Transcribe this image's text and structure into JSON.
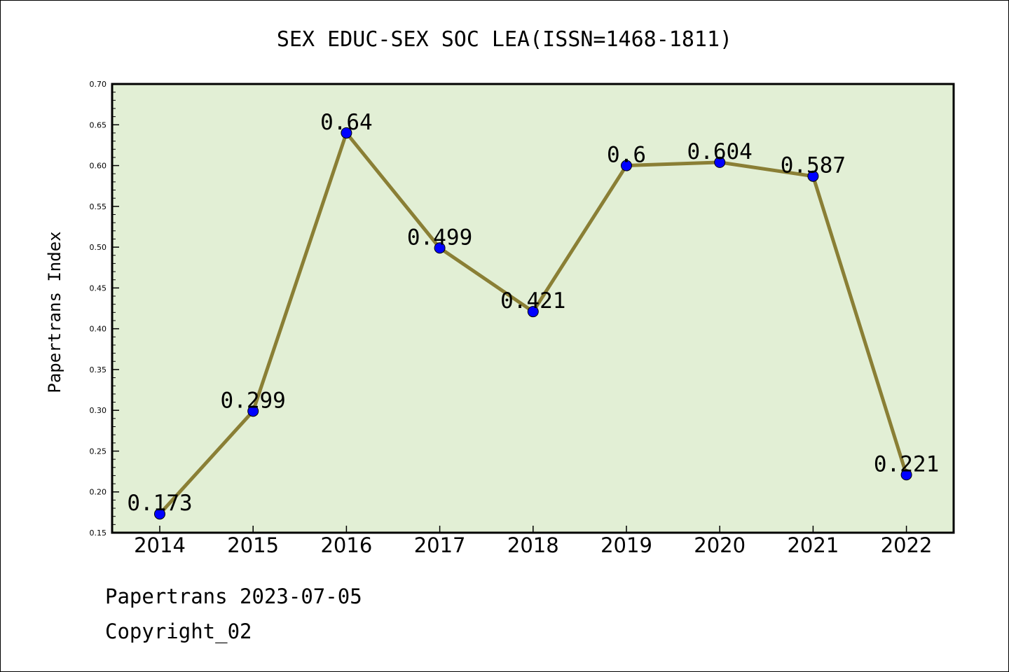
{
  "chart_data": {
    "type": "line",
    "title": "SEX EDUC-SEX SOC LEA(ISSN=1468-1811)",
    "xlabel": "",
    "ylabel": "Papertrans Index",
    "categories": [
      "2014",
      "2015",
      "2016",
      "2017",
      "2018",
      "2019",
      "2020",
      "2021",
      "2022"
    ],
    "values": [
      0.173,
      0.299,
      0.64,
      0.499,
      0.421,
      0.6,
      0.604,
      0.587,
      0.221
    ],
    "data_labels": [
      "0.173",
      "0.299",
      "0.64",
      "0.499",
      "0.421",
      "0.6",
      "0.604",
      "0.587",
      "0.221"
    ],
    "ylim": [
      0.15,
      0.7
    ],
    "yticks": [
      "0.15",
      "0.20",
      "0.25",
      "0.30",
      "0.35",
      "0.40",
      "0.45",
      "0.50",
      "0.55",
      "0.60",
      "0.65",
      "0.70"
    ],
    "grid": false,
    "legend": "none",
    "colors": {
      "plot_background": "#e2efd5",
      "line": "#8a7f35",
      "marker": "#0000ff"
    }
  },
  "footer": {
    "line1": "Papertrans 2023-07-05",
    "line2": "Copyright_02"
  }
}
